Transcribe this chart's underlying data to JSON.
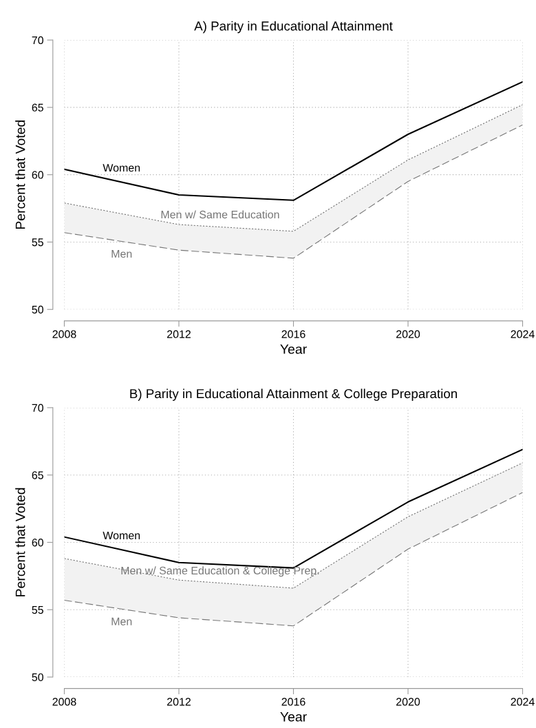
{
  "chart_data": [
    {
      "type": "line",
      "title": "A) Parity in Educational Attainment",
      "xlabel": "Year",
      "ylabel": "Percent that Voted",
      "x": [
        2008,
        2012,
        2016,
        2020,
        2024
      ],
      "xlim": [
        2008,
        2024
      ],
      "xticks": [
        2008,
        2012,
        2016,
        2020,
        2024
      ],
      "ylim": [
        50,
        70
      ],
      "yticks": [
        50,
        55,
        60,
        65,
        70
      ],
      "grid": true,
      "legend": false,
      "series": [
        {
          "name": "Women",
          "color": "#000000",
          "line_style": "solid",
          "values": [
            60.4,
            58.5,
            58.1,
            63.0,
            66.9
          ]
        },
        {
          "name": "Men w/ Same Education",
          "color": "#767676",
          "line_style": "dotted",
          "values": [
            57.9,
            56.3,
            55.8,
            61.1,
            65.2
          ],
          "lower": [
            55.7,
            54.4,
            53.8,
            59.5,
            63.7
          ],
          "upper": [
            57.9,
            56.3,
            55.8,
            61.1,
            65.2
          ]
        },
        {
          "name": "Men",
          "color": "#767676",
          "line_style": "dashed",
          "values": [
            55.7,
            54.4,
            53.8,
            59.5,
            63.7
          ]
        }
      ]
    },
    {
      "type": "line",
      "title": "B) Parity in Educational Attainment & College Preparation",
      "xlabel": "Year",
      "ylabel": "Percent that Voted",
      "x": [
        2008,
        2012,
        2016,
        2020,
        2024
      ],
      "xlim": [
        2008,
        2024
      ],
      "xticks": [
        2008,
        2012,
        2016,
        2020,
        2024
      ],
      "ylim": [
        50,
        70
      ],
      "yticks": [
        50,
        55,
        60,
        65,
        70
      ],
      "grid": true,
      "legend": false,
      "series": [
        {
          "name": "Women",
          "color": "#000000",
          "line_style": "solid",
          "values": [
            60.4,
            58.5,
            58.1,
            63.0,
            66.9
          ]
        },
        {
          "name": "Men w/ Same Education & College Prep.",
          "color": "#767676",
          "line_style": "dotted",
          "values": [
            58.8,
            57.2,
            56.6,
            61.9,
            65.9
          ],
          "lower": [
            55.7,
            54.4,
            53.8,
            59.5,
            63.7
          ],
          "upper": [
            58.8,
            57.2,
            56.6,
            61.9,
            65.9
          ]
        },
        {
          "name": "Men",
          "color": "#767676",
          "line_style": "dashed",
          "values": [
            55.7,
            54.4,
            53.8,
            59.5,
            63.7
          ]
        }
      ]
    }
  ]
}
